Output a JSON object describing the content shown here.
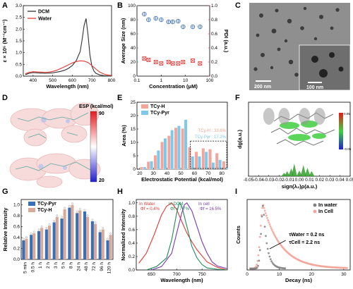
{
  "panels": {
    "A": {
      "label": "A"
    },
    "B": {
      "label": "B"
    },
    "C": {
      "label": "C"
    },
    "D": {
      "label": "D"
    },
    "E": {
      "label": "E"
    },
    "F": {
      "label": "F"
    },
    "G": {
      "label": "G"
    },
    "H": {
      "label": "H"
    },
    "I": {
      "label": "I"
    }
  },
  "panel_C": {
    "scale_main": "200 nm",
    "scale_inset": "100 nm"
  },
  "panel_D": {
    "title": "ESP (kcal/mol)",
    "max": "90",
    "min": "20",
    "colors": {
      "high": "#e41a1c",
      "mid": "#ffffff",
      "low": "#2020d0"
    }
  },
  "panel_F": {
    "cbar_max": "0.05",
    "cbar_min": "-0.05"
  },
  "chart_data": [
    {
      "panel": "A",
      "type": "line",
      "xlabel": "Wavelength (nm)",
      "ylabel": "ε × 10⁵ (M⁻¹cm⁻¹)",
      "xlim": [
        350,
        800
      ],
      "ylim": [
        0,
        3.0
      ],
      "xticks": [
        400,
        500,
        600,
        700,
        800
      ],
      "yticks": [
        0.0,
        0.5,
        1.0,
        1.5,
        2.0,
        2.5,
        3.0
      ],
      "series": [
        {
          "name": "DCM",
          "color": "#333333",
          "x": [
            360,
            380,
            400,
            420,
            440,
            460,
            480,
            500,
            520,
            540,
            560,
            580,
            600,
            620,
            640,
            650,
            660,
            670,
            680,
            690,
            700,
            710,
            720,
            740,
            760,
            780,
            800
          ],
          "y": [
            0.06,
            0.12,
            0.15,
            0.14,
            0.13,
            0.12,
            0.13,
            0.14,
            0.17,
            0.2,
            0.25,
            0.33,
            0.45,
            0.66,
            1.05,
            1.55,
            2.15,
            2.45,
            1.75,
            0.9,
            0.42,
            0.22,
            0.12,
            0.05,
            0.02,
            0.01,
            0.0
          ]
        },
        {
          "name": "Water",
          "color": "#e53935",
          "x": [
            360,
            380,
            400,
            420,
            440,
            460,
            480,
            500,
            520,
            540,
            560,
            580,
            600,
            620,
            640,
            660,
            680,
            700,
            720,
            740,
            760,
            780,
            800
          ],
          "y": [
            0.1,
            0.16,
            0.19,
            0.18,
            0.17,
            0.16,
            0.17,
            0.2,
            0.25,
            0.32,
            0.4,
            0.48,
            0.56,
            0.62,
            0.65,
            0.64,
            0.58,
            0.45,
            0.3,
            0.17,
            0.09,
            0.05,
            0.03
          ]
        }
      ]
    },
    {
      "panel": "B",
      "type": "scatter",
      "xlabel": "Concentration (μM)",
      "ylabel": "Average Size (nm)",
      "y2label": "PDI (a.u.)",
      "xscale": "log",
      "xlim": [
        0.1,
        100
      ],
      "ylim": [
        0,
        100
      ],
      "y2lim": [
        0,
        1.0
      ],
      "xticks": [
        0.1,
        1,
        10,
        100
      ],
      "xticklabels": [
        "0.1",
        "1",
        "10",
        "100"
      ],
      "yticks": [
        0,
        20,
        40,
        60,
        80,
        100
      ],
      "y2ticks": [
        0.0,
        0.2,
        0.4,
        0.6,
        0.8,
        1.0
      ],
      "series": [
        {
          "name": "Average Size",
          "axis": "left",
          "color": "#3a6fb5",
          "x": [
            0.2,
            0.3,
            0.6,
            1,
            2,
            3,
            5,
            8,
            20,
            40
          ],
          "y": [
            88,
            80,
            82,
            80,
            77,
            77,
            78,
            70,
            70,
            70
          ]
        },
        {
          "name": "PDI",
          "axis": "right",
          "color": "#e53935",
          "x": [
            0.2,
            0.3,
            0.6,
            1,
            2,
            3,
            5,
            8,
            20,
            40
          ],
          "y": [
            0.25,
            0.23,
            0.2,
            0.18,
            0.2,
            0.18,
            0.18,
            0.2,
            0.22,
            0.18
          ]
        }
      ]
    },
    {
      "panel": "E",
      "type": "bar",
      "xlabel": "Electrostatic Potential (kcal/mol)",
      "ylabel": "Area (%)",
      "xlim": [
        18,
        84
      ],
      "ylim": [
        0,
        25
      ],
      "xticks": [
        20,
        30,
        40,
        50,
        60,
        70,
        80
      ],
      "yticks": [
        0,
        5,
        10,
        15,
        20,
        25
      ],
      "categories": [
        22.5,
        27.5,
        32.5,
        37.5,
        42.5,
        47.5,
        52.5,
        57.5,
        62.5,
        67.5,
        72.5,
        77.5,
        82.5
      ],
      "series": [
        {
          "name": "TCy-H",
          "color": "#f4a59a",
          "values": [
            0.8,
            2.8,
            5.2,
            10.2,
            12.5,
            15.5,
            15.2,
            8.2,
            6.5,
            7.8,
            7.5,
            6.0,
            3.0
          ]
        },
        {
          "name": "TCy-Pyr",
          "color": "#7ec8ec",
          "values": [
            0.8,
            3.0,
            7.0,
            11.5,
            14.6,
            16.2,
            18.5,
            4.8,
            4.8,
            6.5,
            2.5,
            3.5,
            0.5
          ]
        }
      ],
      "annotations": [
        {
          "text": "TCy-H : 33.6%",
          "color": "#f4a59a"
        },
        {
          "text": "TCy-Pyr : 17.2%",
          "color": "#7ec8ec"
        }
      ]
    },
    {
      "panel": "F",
      "type": "scatter",
      "xlabel": "sign(λ₂)ρ(a.u.)",
      "ylabel": "dg(a.u.)",
      "xlim": [
        -0.05,
        0.05
      ],
      "xticks": [
        -0.05,
        -0.04,
        -0.03,
        -0.02,
        -0.01,
        0.0,
        0.01,
        0.02,
        0.03,
        0.04,
        0.05
      ],
      "xticklabels": [
        "-0.05",
        "-0.04",
        "-0.03",
        "-0.02",
        "-0.01",
        "0.00",
        "0.01",
        "0.02",
        "0.03",
        "0.04",
        "0.05"
      ]
    },
    {
      "panel": "G",
      "type": "bar",
      "xlabel": "",
      "ylabel": "Relative Intensity",
      "ylim": [
        0,
        1.1
      ],
      "yticks": [
        0.0,
        0.2,
        0.4,
        0.6,
        0.8,
        1.0
      ],
      "categories": [
        "5 min",
        "0.5 h",
        "1 h",
        "2 h",
        "3 h",
        "5 h",
        "8 h",
        "24 h",
        "48 h",
        "72 h",
        "96 h",
        "120 h"
      ],
      "series": [
        {
          "name": "TCy-Pyr",
          "color": "#3a6fb5",
          "values": [
            0.35,
            0.45,
            0.52,
            0.55,
            0.68,
            0.75,
            0.95,
            0.85,
            0.88,
            0.7,
            0.5,
            0.35
          ]
        },
        {
          "name": "TCy-H",
          "color": "#d9a99a",
          "values": [
            0.38,
            0.48,
            0.58,
            0.62,
            0.78,
            0.92,
            1.0,
            0.9,
            0.78,
            0.65,
            0.55,
            0.45
          ]
        }
      ]
    },
    {
      "panel": "H",
      "type": "line",
      "xlabel": "Wavelength (nm)",
      "ylabel": "Normalized Intensity",
      "xlim": [
        620,
        800
      ],
      "ylim": [
        0,
        1.05
      ],
      "xticks": [
        650,
        700,
        750
      ],
      "yticks": [
        0.0,
        0.2,
        0.4,
        0.6,
        0.8,
        1.0
      ],
      "series": [
        {
          "name": "In Water",
          "label2": "Φf = 0.4%",
          "color": "#e53935",
          "x": [
            625,
            640,
            655,
            670,
            680,
            690,
            700,
            710,
            720,
            730,
            740,
            760,
            780,
            800
          ],
          "y": [
            0.1,
            0.25,
            0.52,
            0.82,
            0.95,
            1.0,
            0.9,
            0.72,
            0.55,
            0.42,
            0.3,
            0.12,
            0.04,
            0.0
          ]
        },
        {
          "name": "In DCM",
          "label2": "Φf = 7.7%",
          "color": "#1e8a5a",
          "x": [
            640,
            660,
            680,
            690,
            700,
            705,
            710,
            720,
            730,
            740,
            750,
            760,
            780,
            800
          ],
          "y": [
            0.0,
            0.05,
            0.18,
            0.45,
            0.85,
            1.0,
            0.95,
            0.65,
            0.35,
            0.18,
            0.08,
            0.03,
            0.01,
            0.0
          ]
        },
        {
          "name": "In cell",
          "label2": "Φf = 16.5%",
          "color": "#7a3aa8",
          "x": [
            650,
            670,
            690,
            700,
            710,
            715,
            720,
            730,
            740,
            750,
            760,
            770,
            780,
            800
          ],
          "y": [
            0.0,
            0.05,
            0.25,
            0.55,
            0.85,
            0.97,
            1.0,
            0.88,
            0.65,
            0.42,
            0.25,
            0.12,
            0.06,
            0.02
          ]
        }
      ]
    },
    {
      "panel": "I",
      "type": "scatter",
      "xlabel": "Decay (ns)",
      "ylabel": "Counts",
      "xlim": [
        0,
        32
      ],
      "xticks": [
        0,
        10,
        20,
        30
      ],
      "series": [
        {
          "name": "In water",
          "color": "#808080"
        },
        {
          "name": "In Cell",
          "color": "#f4a59a"
        }
      ],
      "annotations": [
        {
          "text": "τWater = 0.2 ns"
        },
        {
          "text": "τCell = 2.2 ns"
        }
      ]
    }
  ]
}
